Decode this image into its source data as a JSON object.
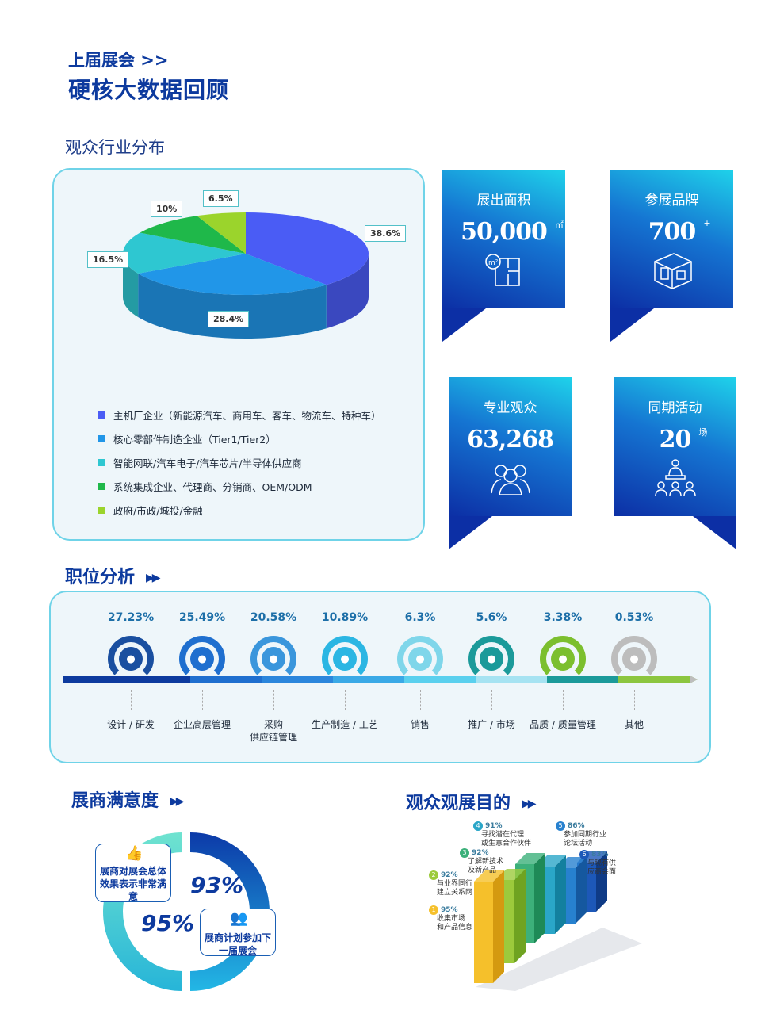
{
  "header": {
    "subtitle": "上届展会 >>",
    "title": "硬核大数据回顾"
  },
  "audience_industry": {
    "title": "观众行业分布",
    "slices": [
      {
        "label": "主机厂企业（新能源汽车、商用车、客车、物流车、特种车）",
        "pct": "38.6%",
        "value": 38.6,
        "color": "#4a5cf5"
      },
      {
        "label": "核心零部件制造企业（Tier1/Tier2）",
        "pct": "28.4%",
        "value": 28.4,
        "color": "#2196e8"
      },
      {
        "label": "智能网联/汽车电子/汽车芯片/半导体供应商",
        "pct": "16.5%",
        "value": 16.5,
        "color": "#2ec7d1"
      },
      {
        "label": "系统集成企业、代理商、分销商、OEM/ODM",
        "pct": "10%",
        "value": 10,
        "color": "#1fb84a"
      },
      {
        "label": "政府/市政/城投/金融",
        "pct": "6.5%",
        "value": 6.5,
        "color": "#9bd42c"
      }
    ]
  },
  "stats": [
    {
      "label": "展出面积",
      "value": "50,000",
      "unit": "㎡",
      "icon": "floor-plan-icon"
    },
    {
      "label": "参展品牌",
      "value": "700",
      "unit": "+",
      "icon": "booth-icon"
    },
    {
      "label": "专业观众",
      "value": "63,268",
      "unit": "",
      "icon": "audience-icon"
    },
    {
      "label": "同期活动",
      "value": "20",
      "unit": "场",
      "icon": "presentation-icon"
    }
  ],
  "positions": {
    "title": "职位分析",
    "arrow": "▶▶",
    "items": [
      {
        "pct": "27.23%",
        "label": "设计 / 研发",
        "color": "#1a4fa0",
        "icon": "gear-icon"
      },
      {
        "pct": "25.49%",
        "label": "企业高层管理",
        "color": "#1f6fcf",
        "icon": "manager-icon"
      },
      {
        "pct": "20.58%",
        "label": "采购\n供应链管理",
        "color": "#3a96dc",
        "icon": "coins-icon"
      },
      {
        "pct": "10.89%",
        "label": "生产制造 / 工艺",
        "color": "#2bb6e3",
        "icon": "robot-arm-icon"
      },
      {
        "pct": "6.3%",
        "label": "销售",
        "color": "#7fd6ea",
        "icon": "dollar-icon"
      },
      {
        "pct": "5.6%",
        "label": "推广 / 市场",
        "color": "#1b9a9a",
        "icon": "growth-chart-icon"
      },
      {
        "pct": "3.38%",
        "label": "品质 / 质量管理",
        "color": "#7cbf2e",
        "icon": "medal-icon"
      },
      {
        "pct": "0.53%",
        "label": "其他",
        "color": "#bdbdbd",
        "icon": "globe-icon"
      }
    ]
  },
  "exhibitor_satisfaction": {
    "title": "展商满意度",
    "arrow": "▶▶",
    "items": [
      {
        "pct": "93%",
        "text": "展商对展会总体效果表示非常满意",
        "icon": "thumbs-up-icon"
      },
      {
        "pct": "95%",
        "text": "展商计划参加下一届展会",
        "icon": "people-icon"
      }
    ]
  },
  "visitor_purpose": {
    "title": "观众观展目的",
    "arrow": "▶▶",
    "items": [
      {
        "num": "1",
        "pct": "95%",
        "text": "收集市场\n和产品信息",
        "value": 95
      },
      {
        "num": "2",
        "pct": "92%",
        "text": "与业界同行\n建立关系网",
        "value": 92
      },
      {
        "num": "3",
        "pct": "92%",
        "text": "了解新技术\n及新产品",
        "value": 92
      },
      {
        "num": "4",
        "pct": "91%",
        "text": "寻找潜在代理\n或生意合作伙伴",
        "value": 91
      },
      {
        "num": "5",
        "pct": "86%",
        "text": "参加同期行业\n论坛活动",
        "value": 86
      },
      {
        "num": "6",
        "pct": "83%",
        "text": "与现有供\n应商会面",
        "value": 83
      }
    ]
  }
}
